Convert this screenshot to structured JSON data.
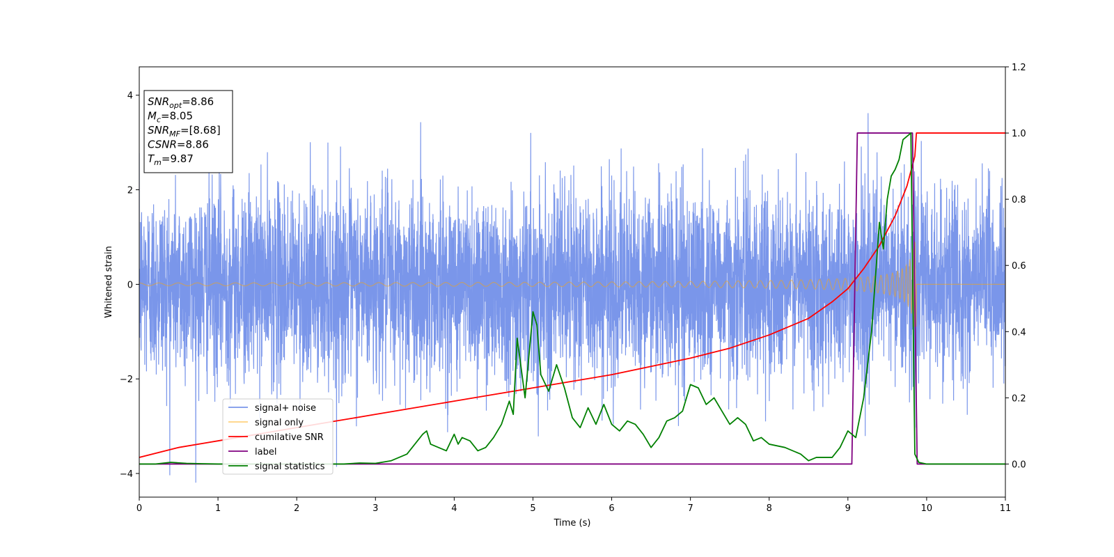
{
  "chart_data": {
    "type": "line",
    "xlabel": "Time (s)",
    "ylabel": "Whitened strain",
    "xlim": [
      0,
      11
    ],
    "ylim_left": [
      -4.5,
      4.6
    ],
    "ylim_right": [
      -0.1,
      1.2
    ],
    "xticks": [
      0,
      1,
      2,
      3,
      4,
      5,
      6,
      7,
      8,
      9,
      10,
      11
    ],
    "yticks_left": [
      -4,
      -2,
      0,
      2,
      4
    ],
    "yticks_right": [
      0.0,
      0.2,
      0.4,
      0.6,
      0.8,
      1.0,
      1.2
    ],
    "grid": false,
    "legend_position": "lower-left",
    "annotation": [
      {
        "var": "SNR",
        "sub": "opt",
        "text": "=8.86"
      },
      {
        "var": "M",
        "sub": "c",
        "text": "=8.05"
      },
      {
        "var": "SNR",
        "sub": "MF",
        "text": "=[8.68]"
      },
      {
        "var": "CSNR",
        "sub": "",
        "text": "=8.86"
      },
      {
        "var": "T",
        "sub": "m",
        "text": "=9.87"
      }
    ],
    "series": [
      {
        "name": "signal+ noise",
        "color": "#4169e1",
        "opacity": 0.7,
        "axis": "left",
        "kind": "noise",
        "std": 1.0,
        "t_end": 11
      },
      {
        "name": "signal only",
        "color": "#ffa500",
        "opacity": 0.5,
        "axis": "left",
        "kind": "chirp",
        "t_merger": 9.87,
        "amp_start": 0.03,
        "amp_peak": 0.9
      },
      {
        "name": "cumilative SNR",
        "color": "#ff0000",
        "axis": "right",
        "x": [
          0,
          0.5,
          1,
          1.5,
          2,
          2.5,
          3,
          3.5,
          4,
          4.5,
          5,
          5.5,
          6,
          6.5,
          7,
          7.5,
          8,
          8.5,
          8.8,
          9.0,
          9.2,
          9.4,
          9.6,
          9.75,
          9.85,
          9.87,
          11
        ],
        "y": [
          0.02,
          0.05,
          0.07,
          0.09,
          0.11,
          0.13,
          0.15,
          0.17,
          0.19,
          0.21,
          0.23,
          0.25,
          0.27,
          0.295,
          0.32,
          0.35,
          0.39,
          0.44,
          0.49,
          0.53,
          0.59,
          0.66,
          0.75,
          0.84,
          0.93,
          1.0,
          1.0
        ]
      },
      {
        "name": "label",
        "color": "#800080",
        "axis": "right",
        "x": [
          0,
          9.05,
          9.12,
          9.82,
          9.88,
          11
        ],
        "y": [
          0,
          0,
          1,
          1,
          0,
          0
        ]
      },
      {
        "name": "signal statistics",
        "color": "#008000",
        "axis": "right",
        "x": [
          0,
          0.2,
          0.4,
          0.6,
          0.8,
          1.0,
          1.2,
          1.4,
          1.6,
          1.8,
          2.0,
          2.2,
          2.4,
          2.6,
          2.8,
          3.0,
          3.2,
          3.3,
          3.4,
          3.5,
          3.6,
          3.65,
          3.7,
          3.8,
          3.9,
          4.0,
          4.05,
          4.1,
          4.2,
          4.3,
          4.4,
          4.5,
          4.6,
          4.7,
          4.75,
          4.8,
          4.9,
          5.0,
          5.05,
          5.1,
          5.2,
          5.3,
          5.4,
          5.5,
          5.6,
          5.7,
          5.8,
          5.9,
          6.0,
          6.1,
          6.2,
          6.3,
          6.4,
          6.5,
          6.6,
          6.7,
          6.8,
          6.9,
          7.0,
          7.1,
          7.2,
          7.3,
          7.4,
          7.5,
          7.6,
          7.7,
          7.8,
          7.9,
          8.0,
          8.2,
          8.4,
          8.5,
          8.6,
          8.8,
          8.9,
          9.0,
          9.1,
          9.2,
          9.25,
          9.3,
          9.4,
          9.45,
          9.5,
          9.55,
          9.6,
          9.65,
          9.7,
          9.75,
          9.8,
          9.85,
          9.9,
          10.0,
          11
        ],
        "y": [
          0.0,
          0.0,
          0.005,
          0.002,
          0.001,
          0.0,
          0.0,
          0.0,
          0.0,
          0.0,
          0.0,
          0.0,
          0.0,
          0.0,
          0.003,
          0.002,
          0.01,
          0.02,
          0.03,
          0.06,
          0.09,
          0.1,
          0.06,
          0.05,
          0.04,
          0.09,
          0.06,
          0.08,
          0.07,
          0.04,
          0.05,
          0.08,
          0.12,
          0.19,
          0.15,
          0.38,
          0.2,
          0.46,
          0.42,
          0.27,
          0.22,
          0.3,
          0.23,
          0.14,
          0.11,
          0.17,
          0.12,
          0.18,
          0.12,
          0.1,
          0.13,
          0.12,
          0.09,
          0.05,
          0.08,
          0.13,
          0.14,
          0.16,
          0.24,
          0.23,
          0.18,
          0.2,
          0.16,
          0.12,
          0.14,
          0.12,
          0.07,
          0.08,
          0.06,
          0.05,
          0.03,
          0.01,
          0.02,
          0.02,
          0.05,
          0.1,
          0.08,
          0.2,
          0.3,
          0.4,
          0.73,
          0.65,
          0.8,
          0.87,
          0.89,
          0.92,
          0.98,
          0.99,
          1.0,
          0.03,
          0.005,
          0.0,
          0.0
        ]
      }
    ]
  }
}
